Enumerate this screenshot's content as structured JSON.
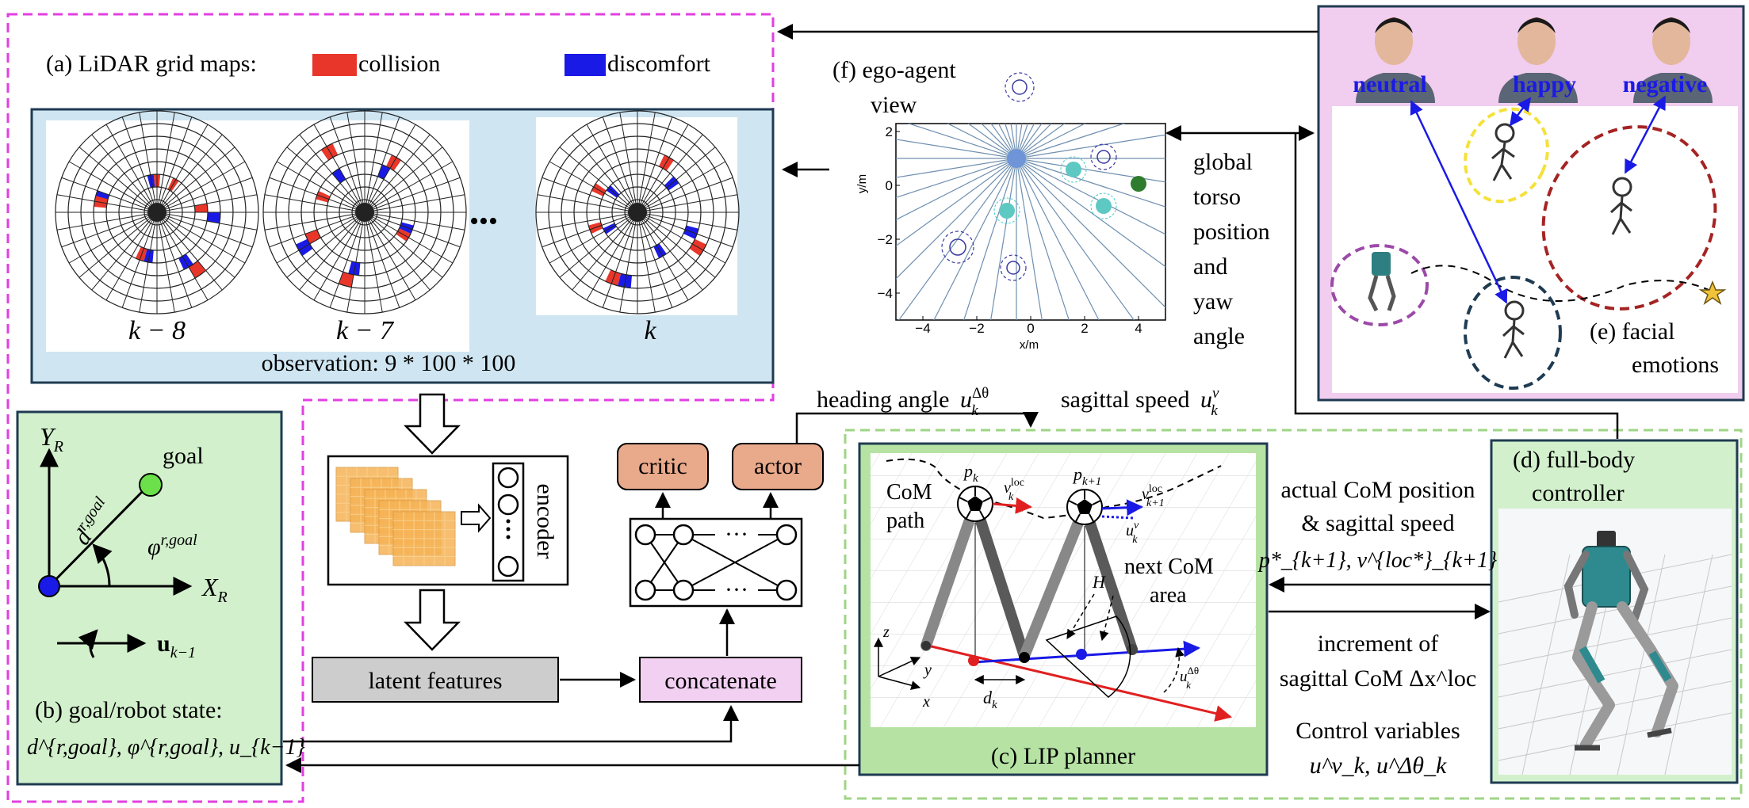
{
  "lidar": {
    "title": "(a) LiDAR grid maps:",
    "legend": [
      {
        "label": "collision",
        "color": "#e8372a"
      },
      {
        "label": "discomfort",
        "color": "#1a1ae6"
      }
    ],
    "frames": [
      "k − 8",
      "k − 7",
      "k"
    ],
    "ellipsis": "•••",
    "observation": "observation: 9 * 100 * 100"
  },
  "ego_view": {
    "title_line1": "(f) ego-agent",
    "title_line2": "view",
    "xlabel": "x/m",
    "ylabel": "y/m",
    "xticks": [
      "−4",
      "−2",
      "0",
      "2",
      "4"
    ],
    "yticks": [
      "2",
      "0",
      "−2",
      "−4"
    ]
  },
  "global_state": {
    "lines": [
      "global",
      "torso",
      "position",
      "and",
      "yaw",
      "angle"
    ]
  },
  "emotions": {
    "labels": [
      "neutral",
      "happy",
      "negative"
    ],
    "caption_line1": "(e) facial",
    "caption_line2": "emotions",
    "emotion_color": "#1a1ae6"
  },
  "goal_state": {
    "yr": "Y",
    "yr_sub": "R",
    "xr": "X",
    "xr_sub": "R",
    "goal": "goal",
    "dist": "d",
    "dist_sup": "r,goal",
    "angle": "φ",
    "angle_sup": "r,goal",
    "u_prev": "u",
    "u_prev_sub": "k−1",
    "caption": "(b) goal/robot state:",
    "state": "d^{r,goal}, φ^{r,goal}, u_{k−1}"
  },
  "network": {
    "encoder": "encoder",
    "latent": "latent features",
    "concat": "concatenate",
    "critic": "critic",
    "actor": "actor",
    "dots": "···"
  },
  "actions": {
    "heading": "heading angle",
    "sagittal": "sagittal speed"
  },
  "lip": {
    "caption": "(c) LIP planner",
    "com_path_line1": "CoM",
    "com_path_line2": "path",
    "next_area_line1": "next CoM",
    "next_area_line2": "area",
    "pk": "p",
    "pk1": "p",
    "H": "H",
    "dk": "d",
    "z": "z",
    "y": "y",
    "x": "x"
  },
  "controller": {
    "title_line1": "(d) full-body",
    "title_line2": "controller"
  },
  "feedback": {
    "line1": "actual CoM position",
    "line2": "& sagittal speed",
    "line3": "p*_{k+1}, v^{loc*}_{k+1}"
  },
  "increment": {
    "line1": "increment of",
    "line2": "sagittal CoM Δx^loc"
  },
  "control_vars": {
    "line1": "Control variables",
    "line2": "u^v_k, u^Δθ_k"
  },
  "colors": {
    "magenta_frame": "#e23fe0",
    "green_frame": "#9fd486",
    "lidar_bg": "#cfe6f2",
    "goal_bg": "#d2f0cc",
    "emotion_bg": "#f1cdef",
    "network_box": "#e9a98b",
    "latent_box": "#cdcdcd",
    "concat_box": "#f2d0f1",
    "lip_bg": "#b6e3a4"
  }
}
